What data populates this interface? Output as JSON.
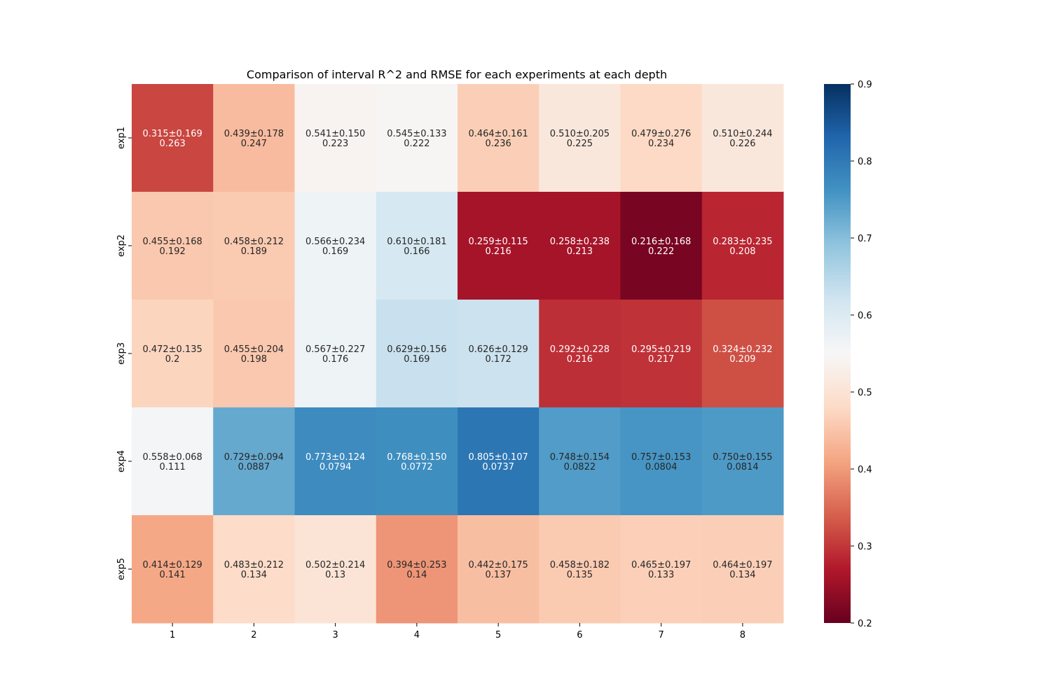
{
  "chart_data": {
    "type": "heatmap",
    "title": "Comparison of interval R^2 and RMSE for each experiments at each depth",
    "xlabel": "",
    "ylabel": "",
    "x_categories": [
      "1",
      "2",
      "3",
      "4",
      "5",
      "6",
      "7",
      "8"
    ],
    "y_categories": [
      "exp1",
      "exp2",
      "exp3",
      "exp4",
      "exp5"
    ],
    "values": [
      [
        0.315,
        0.439,
        0.541,
        0.545,
        0.464,
        0.51,
        0.479,
        0.51
      ],
      [
        0.455,
        0.458,
        0.566,
        0.61,
        0.259,
        0.258,
        0.216,
        0.283
      ],
      [
        0.472,
        0.455,
        0.567,
        0.629,
        0.626,
        0.292,
        0.295,
        0.324
      ],
      [
        0.558,
        0.729,
        0.773,
        0.768,
        0.805,
        0.748,
        0.757,
        0.75
      ],
      [
        0.414,
        0.483,
        0.502,
        0.394,
        0.442,
        0.458,
        0.465,
        0.464
      ]
    ],
    "annotations": [
      [
        [
          "0.315±0.169",
          "0.263"
        ],
        [
          "0.439±0.178",
          "0.247"
        ],
        [
          "0.541±0.150",
          "0.223"
        ],
        [
          "0.545±0.133",
          "0.222"
        ],
        [
          "0.464±0.161",
          "0.236"
        ],
        [
          "0.510±0.205",
          "0.225"
        ],
        [
          "0.479±0.276",
          "0.234"
        ],
        [
          "0.510±0.244",
          "0.226"
        ]
      ],
      [
        [
          "0.455±0.168",
          "0.192"
        ],
        [
          "0.458±0.212",
          "0.189"
        ],
        [
          "0.566±0.234",
          "0.169"
        ],
        [
          "0.610±0.181",
          "0.166"
        ],
        [
          "0.259±0.115",
          "0.216"
        ],
        [
          "0.258±0.238",
          "0.213"
        ],
        [
          "0.216±0.168",
          "0.222"
        ],
        [
          "0.283±0.235",
          "0.208"
        ]
      ],
      [
        [
          "0.472±0.135",
          "0.2"
        ],
        [
          "0.455±0.204",
          "0.198"
        ],
        [
          "0.567±0.227",
          "0.176"
        ],
        [
          "0.629±0.156",
          "0.169"
        ],
        [
          "0.626±0.129",
          "0.172"
        ],
        [
          "0.292±0.228",
          "0.216"
        ],
        [
          "0.295±0.219",
          "0.217"
        ],
        [
          "0.324±0.232",
          "0.209"
        ]
      ],
      [
        [
          "0.558±0.068",
          "0.111"
        ],
        [
          "0.729±0.094",
          "0.0887"
        ],
        [
          "0.773±0.124",
          "0.0794"
        ],
        [
          "0.768±0.150",
          "0.0772"
        ],
        [
          "0.805±0.107",
          "0.0737"
        ],
        [
          "0.748±0.154",
          "0.0822"
        ],
        [
          "0.757±0.153",
          "0.0804"
        ],
        [
          "0.750±0.155",
          "0.0814"
        ]
      ],
      [
        [
          "0.414±0.129",
          "0.141"
        ],
        [
          "0.483±0.212",
          "0.134"
        ],
        [
          "0.502±0.214",
          "0.13"
        ],
        [
          "0.394±0.253",
          "0.14"
        ],
        [
          "0.442±0.175",
          "0.137"
        ],
        [
          "0.458±0.182",
          "0.135"
        ],
        [
          "0.465±0.197",
          "0.133"
        ],
        [
          "0.464±0.197",
          "0.134"
        ]
      ]
    ],
    "colorbar": {
      "colormap": "RdBu",
      "vmin": 0.2,
      "vmax": 0.9,
      "ticks": [
        0.2,
        0.3,
        0.4,
        0.5,
        0.6,
        0.7,
        0.8,
        0.9
      ],
      "tick_labels": [
        "0.2",
        "0.3",
        "0.4",
        "0.5",
        "0.6",
        "0.7",
        "0.8",
        "0.9"
      ]
    },
    "colormap_stops": [
      "#67001f",
      "#b2182b",
      "#d6604d",
      "#f4a582",
      "#fddbc7",
      "#f7f7f7",
      "#d1e5f0",
      "#92c5de",
      "#4393c3",
      "#2166ac",
      "#053061"
    ],
    "text_colors": {
      "light": "#ffffff",
      "dark": "#262626"
    },
    "grid": false
  }
}
